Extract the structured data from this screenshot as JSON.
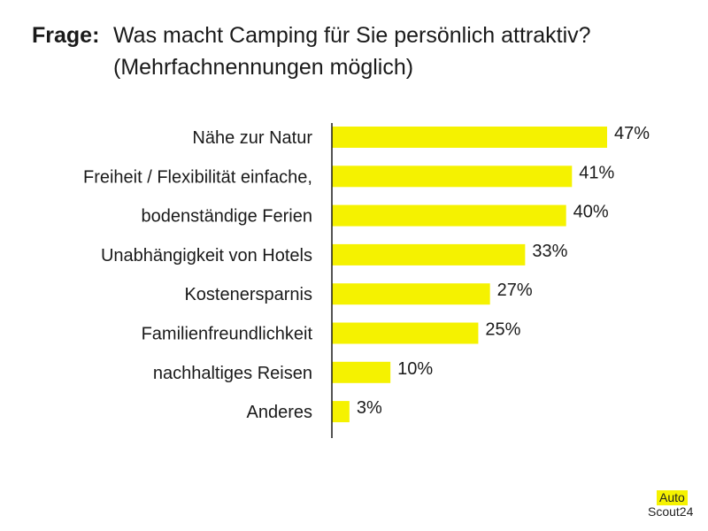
{
  "header": {
    "label": "Frage:",
    "line1": "Was macht Camping für Sie persönlich attraktiv?",
    "line2": "(Mehrfachnennungen möglich)"
  },
  "chart_data": {
    "type": "bar",
    "orientation": "horizontal",
    "categories": [
      "Nähe zur Natur",
      "Freiheit / Flexibilität einfache,",
      "bodenständige Ferien",
      "Unabhängigkeit von Hotels",
      "Kostenersparnis",
      "Familienfreundlichkeit",
      "nachhaltiges Reisen",
      "Anderes"
    ],
    "values": [
      47,
      41,
      40,
      33,
      27,
      25,
      10,
      3
    ],
    "value_labels": [
      "47%",
      "41%",
      "40%",
      "33%",
      "27%",
      "25%",
      "10%",
      "3%"
    ],
    "unit": "%",
    "xlim": [
      0,
      50
    ],
    "bar_color": "#f5f200",
    "axis_color": "#1a1a1a"
  },
  "logo": {
    "top": "Auto",
    "bottom": "Scout24",
    "color": "#f5f200"
  }
}
